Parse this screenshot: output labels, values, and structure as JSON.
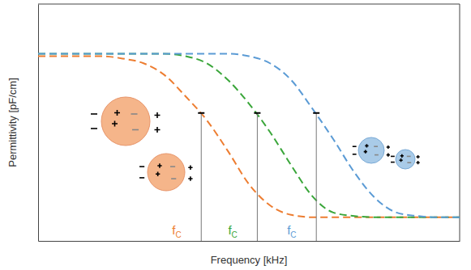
{
  "chart_data": {
    "type": "line",
    "x_label": "Frequency [kHz]",
    "y_label": "Permittivity [pF/cm]",
    "xlim": [
      0,
      100
    ],
    "ylim": [
      0,
      100
    ],
    "xticks": [],
    "yticks": [],
    "tick_labels": false,
    "grid": false,
    "x": [
      0,
      5,
      10,
      15,
      20,
      25,
      30,
      35,
      40,
      45,
      50,
      55,
      60,
      65,
      70,
      75,
      80,
      85,
      90,
      95,
      100
    ],
    "series": [
      {
        "color": "#ed7d31",
        "line_style": "dashed",
        "values": [
          78,
          78,
          78,
          78,
          77,
          75,
          70,
          61,
          51,
          38,
          24,
          15,
          11,
          10,
          10,
          10,
          10,
          10,
          10,
          10,
          10
        ]
      },
      {
        "color": "#3aa63a",
        "line_style": "dashed",
        "values": [
          79,
          79,
          79,
          79,
          79,
          79,
          79,
          78,
          75,
          68,
          58,
          46,
          32,
          19,
          12,
          10.5,
          10,
          10,
          10,
          10,
          10
        ]
      },
      {
        "color": "#5b9bd5",
        "line_style": "dashed",
        "values": [
          79,
          79,
          79,
          79,
          79,
          79,
          79,
          79,
          79,
          79,
          78,
          75,
          68,
          56,
          43,
          29,
          18,
          12,
          10.5,
          10,
          10
        ]
      }
    ],
    "annotations": [
      {
        "text": "f",
        "subscript": "C",
        "x": 38.7,
        "y": 54,
        "color": "#ed7d31"
      },
      {
        "text": "f",
        "subscript": "C",
        "x": 52,
        "y": 54,
        "color": "#3aa63a"
      },
      {
        "text": "f",
        "subscript": "C",
        "x": 66,
        "y": 54,
        "color": "#5b9bd5"
      }
    ]
  }
}
